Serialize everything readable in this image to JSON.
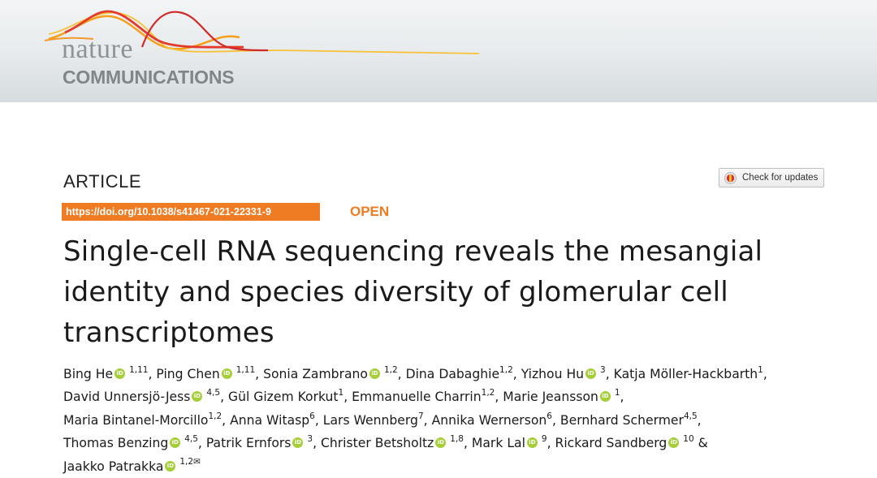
{
  "journal": {
    "brand_top": "nature",
    "brand_bottom": "COMMUNICATIONS"
  },
  "article": {
    "type": "ARTICLE",
    "check_updates_label": "Check for updates",
    "doi": "https://doi.org/10.1038/s41467-021-22331-9",
    "access": "OPEN",
    "title_lines": [
      "Single-cell RNA sequencing reveals the mesangial",
      "identity and species diversity of glomerular cell",
      "transcriptomes"
    ]
  },
  "orcid_badge": "iD",
  "authors": [
    {
      "name": "Bing He",
      "orcid": true,
      "aff": "1,11",
      "sep": ","
    },
    {
      "name": "Ping Chen",
      "orcid": true,
      "aff": "1,11",
      "sep": ","
    },
    {
      "name": "Sonia Zambrano",
      "orcid": true,
      "aff": "1,2",
      "sep": ","
    },
    {
      "name": "Dina Dabaghie",
      "orcid": false,
      "aff": "1,2",
      "sep": ","
    },
    {
      "name": "Yizhou Hu",
      "orcid": true,
      "aff": "3",
      "sep": ","
    },
    {
      "name": "Katja Möller-Hackbarth",
      "orcid": false,
      "aff": "1",
      "sep": ",",
      "br": true
    },
    {
      "name": "David Unnersjö-Jess",
      "orcid": true,
      "aff": "4,5",
      "sep": ","
    },
    {
      "name": "Gül Gizem Korkut",
      "orcid": false,
      "aff": "1",
      "sep": ","
    },
    {
      "name": "Emmanuelle Charrin",
      "orcid": false,
      "aff": "1,2",
      "sep": ","
    },
    {
      "name": "Marie Jeansson",
      "orcid": true,
      "aff": "1",
      "sep": ",",
      "br": true
    },
    {
      "name": "Maria Bintanel-Morcillo",
      "orcid": false,
      "aff": "1,2",
      "sep": ","
    },
    {
      "name": "Anna Witasp",
      "orcid": false,
      "aff": "6",
      "sep": ","
    },
    {
      "name": "Lars Wennberg",
      "orcid": false,
      "aff": "7",
      "sep": ","
    },
    {
      "name": "Annika Wernerson",
      "orcid": false,
      "aff": "6",
      "sep": ","
    },
    {
      "name": "Bernhard Schermer",
      "orcid": false,
      "aff": "4,5",
      "sep": ",",
      "br": true
    },
    {
      "name": "Thomas Benzing",
      "orcid": true,
      "aff": "4,5",
      "sep": ","
    },
    {
      "name": "Patrik Ernfors",
      "orcid": true,
      "aff": "3",
      "sep": ","
    },
    {
      "name": "Christer Betsholtz",
      "orcid": true,
      "aff": "1,8",
      "sep": ","
    },
    {
      "name": "Mark Lal",
      "orcid": true,
      "aff": "9",
      "sep": ","
    },
    {
      "name": "Rickard Sandberg",
      "orcid": true,
      "aff": "10",
      "sep": " &",
      "br": true
    },
    {
      "name": "Jaakko Patrakka",
      "orcid": true,
      "aff": "1,2",
      "sep": "",
      "mail": "✉"
    }
  ]
}
